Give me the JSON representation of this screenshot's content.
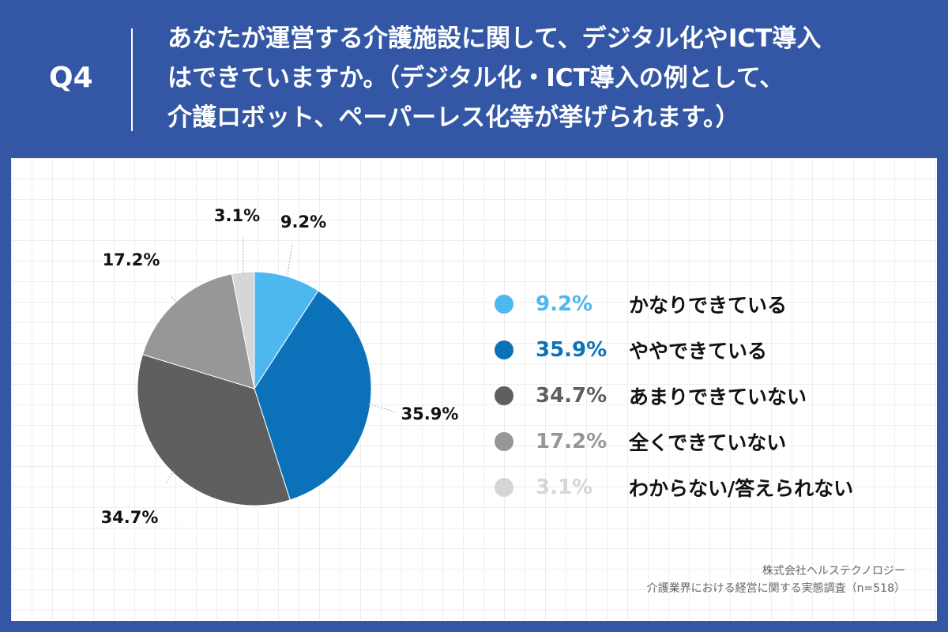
{
  "header": {
    "q_number": "Q4",
    "question": "あなたが運営する介護施設に関して、デジタル化やICT導入\nはできていますか。（デジタル化・ICT導入の例として、\n介護ロボット、ペーパーレス化等が挙げられます。）"
  },
  "chart_data": {
    "type": "pie",
    "title": "",
    "unit": "%",
    "categories": [
      "かなりできている",
      "ややできている",
      "あまりできていない",
      "全くできていない",
      "わからない/答えられない"
    ],
    "values": [
      9.2,
      35.9,
      34.7,
      17.2,
      3.1
    ],
    "labels": [
      "9.2%",
      "35.9%",
      "34.7%",
      "17.2%",
      "3.1%"
    ],
    "colors": [
      "#4db8f0",
      "#0b72b9",
      "#5f5f5f",
      "#979797",
      "#d6d6d6"
    ],
    "start_angle": "12 o'clock",
    "direction": "clockwise",
    "legend_position": "right"
  },
  "legend": [
    {
      "pct": "9.2%",
      "label": "かなりできている",
      "color": "#4db8f0"
    },
    {
      "pct": "35.9%",
      "label": "ややできている",
      "color": "#0b72b9"
    },
    {
      "pct": "34.7%",
      "label": "あまりできていない",
      "color": "#5f5f5f"
    },
    {
      "pct": "17.2%",
      "label": "全くできていない",
      "color": "#979797"
    },
    {
      "pct": "3.1%",
      "label": "わからない/答えられない",
      "color": "#d6d6d6"
    }
  ],
  "source": {
    "company": "株式会社ヘルステクノロジー",
    "survey": "介護業界における経営に関する実態調査（n=518）"
  }
}
